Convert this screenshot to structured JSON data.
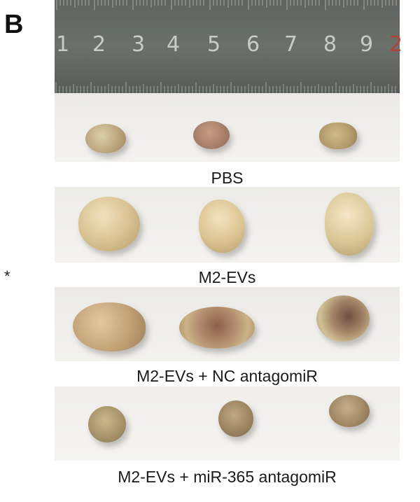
{
  "panel": {
    "letter": "B",
    "asterisk": "*"
  },
  "ruler": {
    "numbers": [
      "1",
      "2",
      "3",
      "4",
      "5",
      "6",
      "7",
      "8",
      "9",
      "2"
    ],
    "colors": {
      "body": "#62675f",
      "digits": "#c9cbc4",
      "accent_digit": "#b3433a"
    }
  },
  "groups": [
    {
      "label": "PBS",
      "tumor_count": 3
    },
    {
      "label": "M2-EVs",
      "tumor_count": 3
    },
    {
      "label": "M2-EVs + NC antagomiR",
      "tumor_count": 3
    },
    {
      "label": "M2-EVs + miR-365 antagomiR",
      "tumor_count": 3
    }
  ]
}
